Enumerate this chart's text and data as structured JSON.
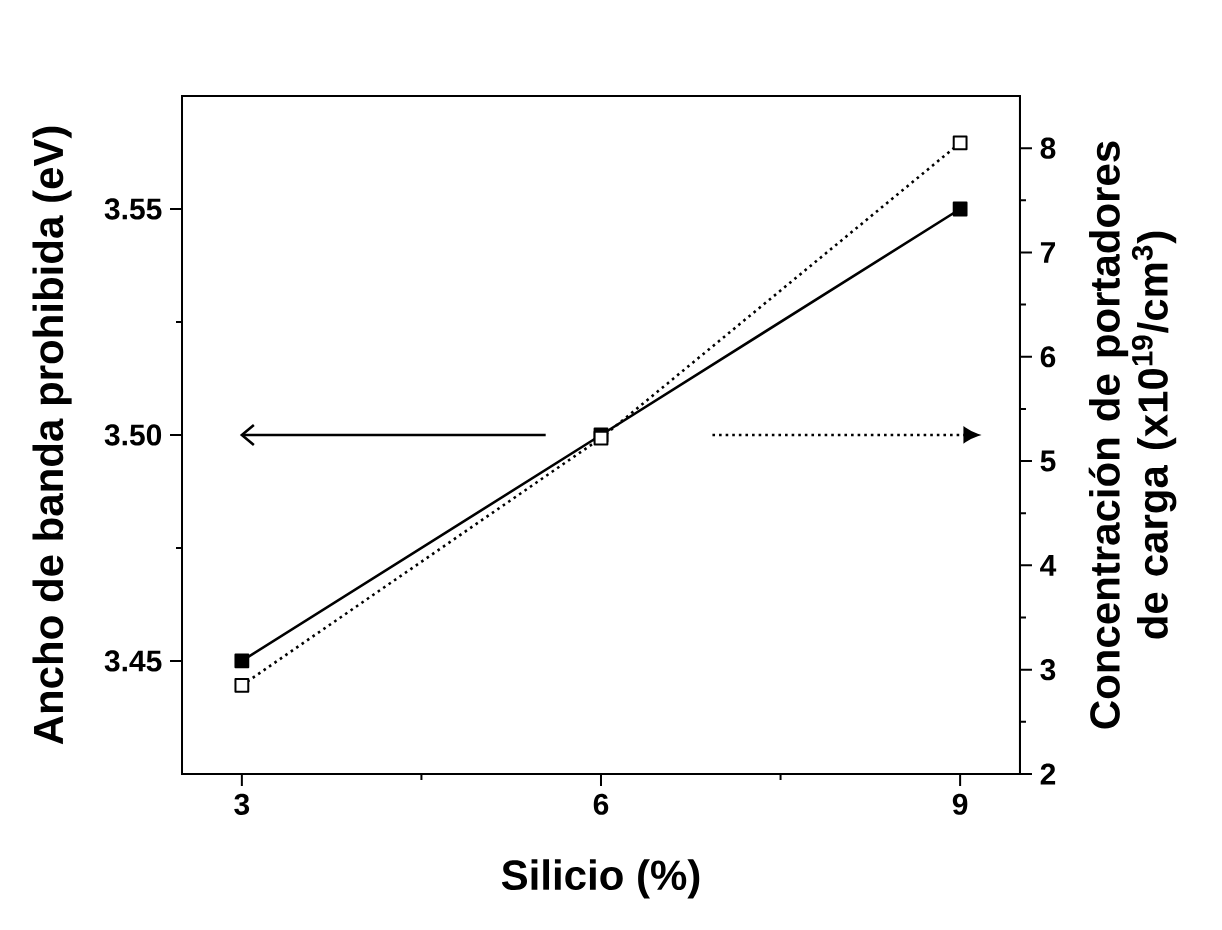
{
  "chart_data": {
    "type": "line",
    "xlabel": "Silicio (%)",
    "ylabel": "Ancho de banda prohibida (eV)",
    "y2label": "Concentración de portadores de carga (x10$^{19}$/cm$^{3}$)",
    "x": [
      3,
      6,
      9
    ],
    "xlim": [
      2.5,
      9.5
    ],
    "xticks": [
      3,
      {
        "value": 4.5,
        "label": null
      },
      6,
      {
        "value": 7.5,
        "label": null
      },
      9
    ],
    "ylim": [
      3.425,
      3.575
    ],
    "yticks": [
      3.45,
      {
        "value": 3.475,
        "label": null
      },
      {
        "value": 3.5,
        "label": "3.50"
      },
      {
        "value": 3.525,
        "label": null
      },
      3.55
    ],
    "y2lim": [
      2,
      8.5
    ],
    "y2ticks": [
      2,
      {
        "value": 2.5,
        "label": null
      },
      3,
      {
        "value": 3.5,
        "label": null
      },
      4,
      {
        "value": 4.5,
        "label": null
      },
      5,
      {
        "value": 5.5,
        "label": null
      },
      6,
      {
        "value": 6.5,
        "label": null
      },
      7,
      {
        "value": 7.5,
        "label": null
      },
      8
    ],
    "marker": "square",
    "series": [
      {
        "color": "#000000",
        "values": [
          3.45,
          3.5,
          3.55
        ],
        "line_style": "solid"
      },
      {
        "color": "#000000",
        "values": [
          2.85,
          5.22,
          8.05
        ],
        "line_style": "dotted",
        "axis": "y2"
      }
    ]
  }
}
